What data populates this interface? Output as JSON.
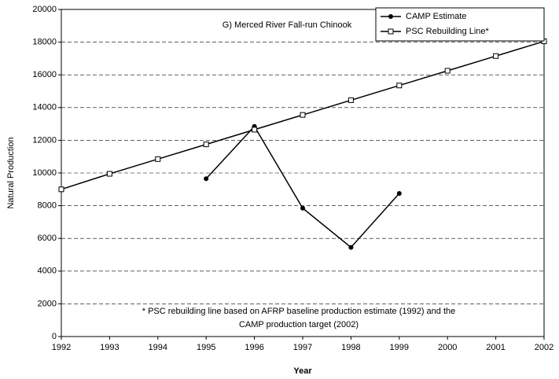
{
  "chart_data": {
    "type": "line",
    "title": "G) Merced River Fall-run Chinook",
    "x_label": "Year",
    "y_label": "Natural Production",
    "annotations": [
      "* PSC rebuilding line based on AFRP baseline production estimate (1992) and the",
      "CAMP production target (2002)"
    ],
    "x": [
      1992,
      1993,
      1994,
      1995,
      1996,
      1997,
      1998,
      1999,
      2000,
      2001,
      2002
    ],
    "series": [
      {
        "name": "CAMP Estimate",
        "color": "#000000",
        "marker": "circle",
        "values": [
          null,
          null,
          null,
          9650,
          12850,
          7850,
          5450,
          8750,
          null,
          null,
          null
        ]
      },
      {
        "name": "PSC Rebuilding Line*",
        "color": "#000000",
        "marker": "square",
        "values": [
          9000,
          9950,
          10850,
          11750,
          12650,
          13550,
          14450,
          15350,
          16250,
          17150,
          18050
        ]
      }
    ],
    "xlim": [
      1992,
      2002
    ],
    "xticks": [
      1992,
      1993,
      1994,
      1995,
      1996,
      1997,
      1998,
      1999,
      2000,
      2001,
      2002
    ],
    "ylim": [
      0,
      20000
    ],
    "yticks": [
      0,
      2000,
      4000,
      6000,
      8000,
      10000,
      12000,
      14000,
      16000,
      18000,
      20000
    ],
    "grid": true,
    "legend": "top-right"
  }
}
